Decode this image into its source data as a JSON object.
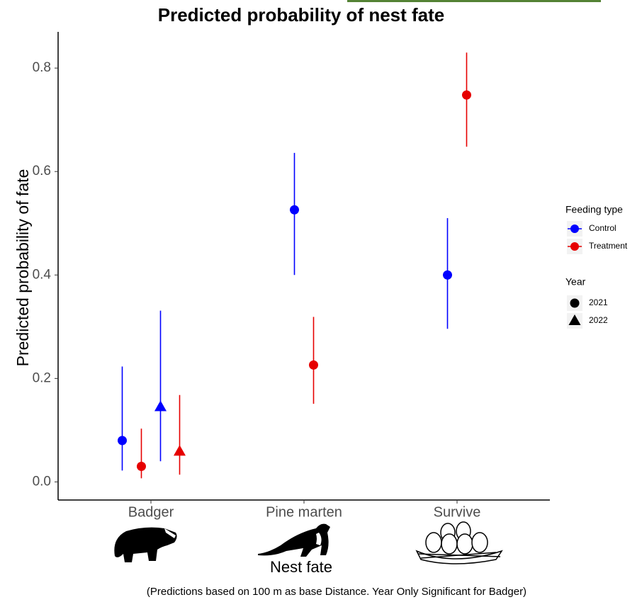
{
  "chart_data": {
    "type": "pointrange",
    "title": "Predicted probability of nest fate",
    "y_label": "Predicted probability of fate",
    "x_label": "Nest fate",
    "caption": "(Predictions based on 100 m as base Distance. Year Only Significant for Badger)",
    "categories": [
      "Badger",
      "Pine marten",
      "Survive"
    ],
    "ylim": [
      -0.035,
      0.87
    ],
    "yticks": [
      {
        "value": 0,
        "label": "0.0"
      },
      0.2,
      0.4,
      0.6,
      0.8
    ],
    "feeding_legend": {
      "title": "Feeding type",
      "items": [
        {
          "name": "Control",
          "color": "#0000ff"
        },
        {
          "name": "Treatment",
          "color": "#e60000"
        }
      ]
    },
    "year_legend": {
      "title": "Year",
      "items": [
        {
          "name": "2021",
          "shape": "circle"
        },
        {
          "name": "2022",
          "shape": "triangle"
        }
      ]
    },
    "points": [
      {
        "category": "Badger",
        "feeding": "Control",
        "year": "2021",
        "value": 0.08,
        "low": 0.022,
        "high": 0.223
      },
      {
        "category": "Badger",
        "feeding": "Treatment",
        "year": "2021",
        "value": 0.03,
        "low": 0.007,
        "high": 0.103
      },
      {
        "category": "Badger",
        "feeding": "Control",
        "year": "2022",
        "value": 0.145,
        "low": 0.04,
        "high": 0.331
      },
      {
        "category": "Badger",
        "feeding": "Treatment",
        "year": "2022",
        "value": 0.059,
        "low": 0.014,
        "high": 0.168
      },
      {
        "category": "Pine marten",
        "feeding": "Control",
        "year": "2021",
        "value": 0.526,
        "low": 0.4,
        "high": 0.636
      },
      {
        "category": "Pine marten",
        "feeding": "Treatment",
        "year": "2021",
        "value": 0.226,
        "low": 0.151,
        "high": 0.319
      },
      {
        "category": "Survive",
        "feeding": "Control",
        "year": "2021",
        "value": 0.4,
        "low": 0.296,
        "high": 0.51
      },
      {
        "category": "Survive",
        "feeding": "Treatment",
        "year": "2021",
        "value": 0.748,
        "low": 0.648,
        "high": 0.83
      }
    ]
  }
}
